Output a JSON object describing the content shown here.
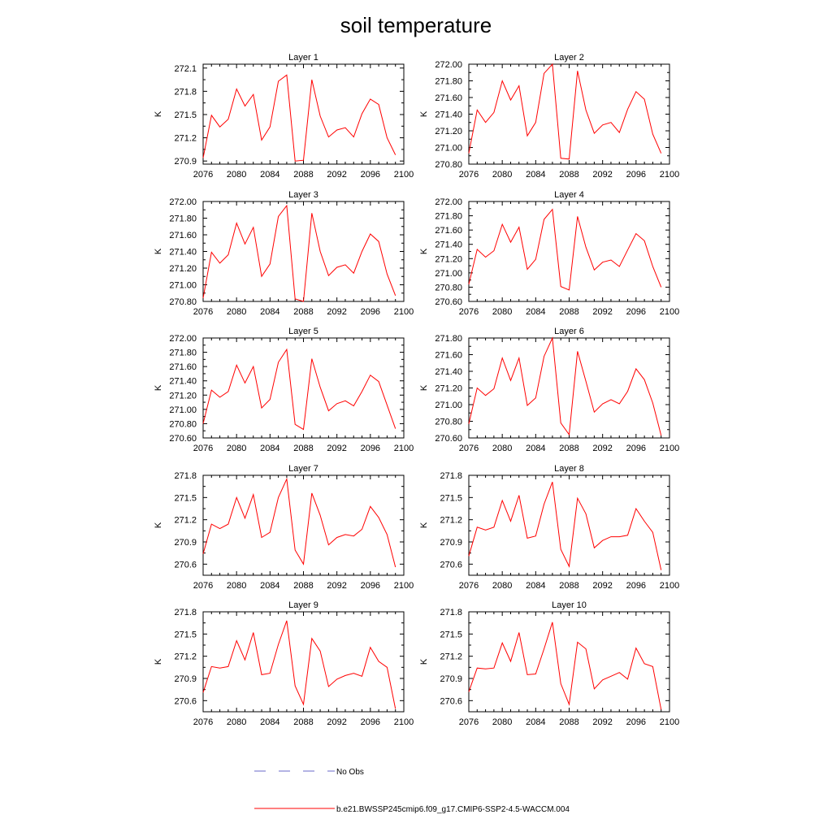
{
  "title": "soil temperature",
  "legend": {
    "obs_label": "No Obs",
    "model_label": "b.e21.BWSSP245cmip6.f09_g17.CMIP6-SSP2-4.5-WACCM.004",
    "model_color": "#ff0000",
    "obs_color": "#6a6ac8"
  },
  "chart_data": [
    {
      "type": "line",
      "title": "Layer 1",
      "ylabel": "K",
      "xlim": [
        2076,
        2100
      ],
      "ylim": [
        270.86,
        272.15
      ],
      "xticks": [
        2076,
        2080,
        2084,
        2088,
        2092,
        2096,
        2100
      ],
      "yticks": [
        270.9,
        271.2,
        271.5,
        271.8,
        272.1
      ],
      "ytick_decimals": 1,
      "color": "#ff0000",
      "x": [
        2076,
        2077,
        2078,
        2079,
        2080,
        2081,
        2082,
        2083,
        2084,
        2085,
        2086,
        2087,
        2088,
        2089,
        2090,
        2091,
        2092,
        2093,
        2094,
        2095,
        2096,
        2097,
        2098,
        2099
      ],
      "values": [
        270.94,
        271.49,
        271.34,
        271.44,
        271.83,
        271.61,
        271.76,
        271.17,
        271.34,
        271.93,
        272.01,
        270.9,
        270.91,
        271.95,
        271.48,
        271.21,
        271.3,
        271.33,
        271.21,
        271.51,
        271.7,
        271.63,
        271.2,
        270.98
      ]
    },
    {
      "type": "line",
      "title": "Layer 2",
      "ylabel": "K",
      "xlim": [
        2076,
        2100
      ],
      "ylim": [
        270.8,
        272.0
      ],
      "xticks": [
        2076,
        2080,
        2084,
        2088,
        2092,
        2096,
        2100
      ],
      "yticks": [
        270.8,
        271.0,
        271.2,
        271.4,
        271.6,
        271.8,
        272.0
      ],
      "ytick_decimals": 2,
      "color": "#ff0000",
      "x": [
        2076,
        2077,
        2078,
        2079,
        2080,
        2081,
        2082,
        2083,
        2084,
        2085,
        2086,
        2087,
        2088,
        2089,
        2090,
        2091,
        2092,
        2093,
        2094,
        2095,
        2096,
        2097,
        2098,
        2099
      ],
      "values": [
        270.93,
        271.45,
        271.3,
        271.42,
        271.8,
        271.57,
        271.74,
        271.14,
        271.3,
        271.89,
        272.0,
        270.87,
        270.86,
        271.92,
        271.45,
        271.17,
        271.27,
        271.3,
        271.18,
        271.46,
        271.67,
        271.58,
        271.16,
        270.93
      ]
    },
    {
      "type": "line",
      "title": "Layer 3",
      "ylabel": "K",
      "xlim": [
        2076,
        2100
      ],
      "ylim": [
        270.8,
        272.0
      ],
      "xticks": [
        2076,
        2080,
        2084,
        2088,
        2092,
        2096,
        2100
      ],
      "yticks": [
        270.8,
        271.0,
        271.2,
        271.4,
        271.6,
        271.8,
        272.0
      ],
      "ytick_decimals": 2,
      "color": "#ff0000",
      "x": [
        2076,
        2077,
        2078,
        2079,
        2080,
        2081,
        2082,
        2083,
        2084,
        2085,
        2086,
        2087,
        2088,
        2089,
        2090,
        2091,
        2092,
        2093,
        2094,
        2095,
        2096,
        2097,
        2098,
        2099
      ],
      "values": [
        270.84,
        271.39,
        271.26,
        271.36,
        271.74,
        271.49,
        271.69,
        271.1,
        271.25,
        271.82,
        271.95,
        270.83,
        270.8,
        271.86,
        271.4,
        271.11,
        271.21,
        271.24,
        271.14,
        271.4,
        271.61,
        271.52,
        271.13,
        270.87
      ]
    },
    {
      "type": "line",
      "title": "Layer 4",
      "ylabel": "K",
      "xlim": [
        2076,
        2100
      ],
      "ylim": [
        270.6,
        272.0
      ],
      "xticks": [
        2076,
        2080,
        2084,
        2088,
        2092,
        2096,
        2100
      ],
      "yticks": [
        270.6,
        270.8,
        271.0,
        271.2,
        271.4,
        271.6,
        271.8,
        272.0
      ],
      "ytick_decimals": 2,
      "color": "#ff0000",
      "x": [
        2076,
        2077,
        2078,
        2079,
        2080,
        2081,
        2082,
        2083,
        2084,
        2085,
        2086,
        2087,
        2088,
        2089,
        2090,
        2091,
        2092,
        2093,
        2094,
        2095,
        2096,
        2097,
        2098,
        2099
      ],
      "values": [
        270.84,
        271.33,
        271.22,
        271.31,
        271.68,
        271.43,
        271.64,
        271.05,
        271.19,
        271.75,
        271.89,
        270.81,
        270.76,
        271.79,
        271.36,
        271.04,
        271.15,
        271.18,
        271.09,
        271.32,
        271.55,
        271.45,
        271.09,
        270.8
      ]
    },
    {
      "type": "line",
      "title": "Layer 5",
      "ylabel": "K",
      "xlim": [
        2076,
        2100
      ],
      "ylim": [
        270.6,
        272.0
      ],
      "xticks": [
        2076,
        2080,
        2084,
        2088,
        2092,
        2096,
        2100
      ],
      "yticks": [
        270.6,
        270.8,
        271.0,
        271.2,
        271.4,
        271.6,
        271.8,
        272.0
      ],
      "ytick_decimals": 2,
      "color": "#ff0000",
      "x": [
        2076,
        2077,
        2078,
        2079,
        2080,
        2081,
        2082,
        2083,
        2084,
        2085,
        2086,
        2087,
        2088,
        2089,
        2090,
        2091,
        2092,
        2093,
        2094,
        2095,
        2096,
        2097,
        2098,
        2099
      ],
      "values": [
        270.8,
        271.27,
        271.17,
        271.25,
        271.62,
        271.37,
        271.6,
        271.02,
        271.14,
        271.66,
        271.84,
        270.79,
        270.72,
        271.71,
        271.31,
        270.98,
        271.08,
        271.12,
        271.05,
        271.25,
        271.48,
        271.39,
        271.06,
        270.73
      ]
    },
    {
      "type": "line",
      "title": "Layer 6",
      "ylabel": "K",
      "xlim": [
        2076,
        2100
      ],
      "ylim": [
        270.6,
        271.8
      ],
      "xticks": [
        2076,
        2080,
        2084,
        2088,
        2092,
        2096,
        2100
      ],
      "yticks": [
        270.6,
        270.8,
        271.0,
        271.2,
        271.4,
        271.6,
        271.8
      ],
      "ytick_decimals": 2,
      "color": "#ff0000",
      "x": [
        2076,
        2077,
        2078,
        2079,
        2080,
        2081,
        2082,
        2083,
        2084,
        2085,
        2086,
        2087,
        2088,
        2089,
        2090,
        2091,
        2092,
        2093,
        2094,
        2095,
        2096,
        2097,
        2098,
        2099
      ],
      "values": [
        270.77,
        271.2,
        271.11,
        271.19,
        271.56,
        271.29,
        271.56,
        270.99,
        271.08,
        271.58,
        271.8,
        270.78,
        270.64,
        271.64,
        271.28,
        270.91,
        271.01,
        271.06,
        271.01,
        271.16,
        271.43,
        271.3,
        271.02,
        270.63
      ]
    },
    {
      "type": "line",
      "title": "Layer 7",
      "ylabel": "K",
      "xlim": [
        2076,
        2100
      ],
      "ylim": [
        270.45,
        271.8
      ],
      "xticks": [
        2076,
        2080,
        2084,
        2088,
        2092,
        2096,
        2100
      ],
      "yticks": [
        270.6,
        270.9,
        271.2,
        271.5,
        271.8
      ],
      "ytick_decimals": 1,
      "color": "#ff0000",
      "x": [
        2076,
        2077,
        2078,
        2079,
        2080,
        2081,
        2082,
        2083,
        2084,
        2085,
        2086,
        2087,
        2088,
        2089,
        2090,
        2091,
        2092,
        2093,
        2094,
        2095,
        2096,
        2097,
        2098,
        2099
      ],
      "values": [
        270.74,
        271.14,
        271.08,
        271.14,
        271.5,
        271.22,
        271.54,
        270.96,
        271.03,
        271.5,
        271.75,
        270.79,
        270.6,
        271.56,
        271.26,
        270.86,
        270.96,
        271.0,
        270.98,
        271.07,
        271.38,
        271.23,
        271.0,
        270.56
      ]
    },
    {
      "type": "line",
      "title": "Layer 8",
      "ylabel": "K",
      "xlim": [
        2076,
        2100
      ],
      "ylim": [
        270.45,
        271.8
      ],
      "xticks": [
        2076,
        2080,
        2084,
        2088,
        2092,
        2096,
        2100
      ],
      "yticks": [
        270.6,
        270.9,
        271.2,
        271.5,
        271.8
      ],
      "ytick_decimals": 1,
      "color": "#ff0000",
      "x": [
        2076,
        2077,
        2078,
        2079,
        2080,
        2081,
        2082,
        2083,
        2084,
        2085,
        2086,
        2087,
        2088,
        2089,
        2090,
        2091,
        2092,
        2093,
        2094,
        2095,
        2096,
        2097,
        2098,
        2099
      ],
      "values": [
        270.71,
        271.1,
        271.06,
        271.1,
        271.46,
        271.18,
        271.53,
        270.95,
        270.98,
        271.41,
        271.71,
        270.8,
        270.57,
        271.49,
        271.28,
        270.82,
        270.92,
        270.97,
        270.97,
        270.99,
        271.35,
        271.18,
        271.03,
        270.52
      ]
    },
    {
      "type": "line",
      "title": "Layer 9",
      "ylabel": "K",
      "xlim": [
        2076,
        2100
      ],
      "ylim": [
        270.45,
        271.8
      ],
      "xticks": [
        2076,
        2080,
        2084,
        2088,
        2092,
        2096,
        2100
      ],
      "yticks": [
        270.6,
        270.9,
        271.2,
        271.5,
        271.8
      ],
      "ytick_decimals": 1,
      "color": "#ff0000",
      "x": [
        2076,
        2077,
        2078,
        2079,
        2080,
        2081,
        2082,
        2083,
        2084,
        2085,
        2086,
        2087,
        2088,
        2089,
        2090,
        2091,
        2092,
        2093,
        2094,
        2095,
        2096,
        2097,
        2098,
        2099
      ],
      "values": [
        270.71,
        271.06,
        271.04,
        271.06,
        271.41,
        271.15,
        271.52,
        270.95,
        270.97,
        271.36,
        271.68,
        270.8,
        270.55,
        271.44,
        271.27,
        270.79,
        270.89,
        270.94,
        270.97,
        270.93,
        271.32,
        271.13,
        271.05,
        270.49
      ]
    },
    {
      "type": "line",
      "title": "Layer 10",
      "ylabel": "K",
      "xlim": [
        2076,
        2100
      ],
      "ylim": [
        270.45,
        271.8
      ],
      "xticks": [
        2076,
        2080,
        2084,
        2088,
        2092,
        2096,
        2100
      ],
      "yticks": [
        270.6,
        270.9,
        271.2,
        271.5,
        271.8
      ],
      "ytick_decimals": 1,
      "color": "#ff0000",
      "x": [
        2076,
        2077,
        2078,
        2079,
        2080,
        2081,
        2082,
        2083,
        2084,
        2085,
        2086,
        2087,
        2088,
        2089,
        2090,
        2091,
        2092,
        2093,
        2094,
        2095,
        2096,
        2097,
        2098,
        2099
      ],
      "values": [
        270.72,
        271.04,
        271.03,
        271.04,
        271.38,
        271.13,
        271.52,
        270.95,
        270.96,
        271.3,
        271.66,
        270.83,
        270.55,
        271.39,
        271.3,
        270.76,
        270.88,
        270.93,
        270.98,
        270.89,
        271.31,
        271.1,
        271.06,
        270.48
      ]
    }
  ]
}
